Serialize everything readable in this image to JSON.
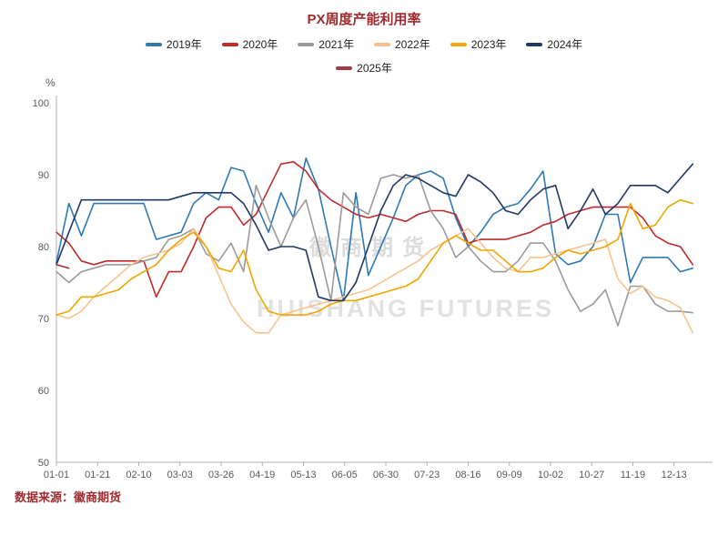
{
  "title": "PX周度产能利用率",
  "source": "数据来源：徽商期货",
  "watermark": {
    "cn": "徽商期货",
    "en": "HUISHANG FUTURES"
  },
  "y_axis": {
    "unit": "%",
    "min": 50,
    "max": 100,
    "ticks": [
      50,
      60,
      70,
      80,
      90,
      100
    ]
  },
  "x_axis": {
    "ticks": [
      "01-01",
      "01-21",
      "02-10",
      "03-03",
      "03-26",
      "04-19",
      "05-13",
      "06-05",
      "06-30",
      "07-23",
      "08-16",
      "09-09",
      "10-02",
      "10-27",
      "11-19",
      "12-13"
    ]
  },
  "chart_data": {
    "type": "line",
    "title": "PX周度产能利用率",
    "xlabel": "",
    "ylabel": "%",
    "ylim": [
      50,
      100
    ],
    "x_unit": "week-of-year (weekly points, Jan 01 to late Dec)",
    "x_tick_labels": [
      "01-01",
      "01-21",
      "02-10",
      "03-03",
      "03-26",
      "04-19",
      "05-13",
      "06-05",
      "06-30",
      "07-23",
      "08-16",
      "09-09",
      "10-02",
      "10-27",
      "11-19",
      "12-13"
    ],
    "legend_position": "top",
    "grid": false,
    "series": [
      {
        "name": "2019年",
        "color": "#2e79b5",
        "values": [
          77.8,
          86,
          81.5,
          86,
          86,
          86,
          86,
          86,
          81,
          81.5,
          82,
          86,
          87.5,
          86.5,
          91,
          90.5,
          86,
          82,
          87.5,
          84,
          92.3,
          88,
          80,
          72.5,
          87.5,
          76,
          80,
          84,
          88.5,
          90,
          90.5,
          89.5,
          84,
          80,
          82,
          84.5,
          85.5,
          86,
          88,
          90.5,
          79,
          77.5,
          78,
          80,
          84.5,
          84.5,
          75,
          78.5,
          78.5,
          78.5,
          76.5,
          77
        ]
      },
      {
        "name": "2020年",
        "color": "#c02a2a",
        "values": [
          82,
          80.5,
          78,
          77.5,
          78,
          78,
          78,
          78,
          73,
          76.5,
          76.5,
          80,
          84,
          85.5,
          85.5,
          83,
          84.5,
          88,
          91.5,
          91.8,
          90.5,
          88,
          86.5,
          85.5,
          84.5,
          84,
          84.5,
          84,
          83.5,
          84.5,
          85,
          85,
          84.5,
          80.5,
          81,
          81,
          81,
          81.5,
          82,
          83,
          83.5,
          84.5,
          85,
          85.5,
          85.5,
          85.5,
          85.5,
          84,
          81.5,
          80.5,
          80,
          77.5
        ]
      },
      {
        "name": "2021年",
        "color": "#9a9a9a",
        "values": [
          76.5,
          75,
          76.5,
          77,
          77.5,
          77.5,
          77.5,
          78,
          78.5,
          81,
          81.5,
          82.5,
          79,
          78,
          80.5,
          76.5,
          88.5,
          84,
          80,
          84,
          86.5,
          80,
          72.5,
          87.5,
          85.5,
          84.5,
          89.5,
          90,
          89.5,
          90,
          85,
          82.5,
          78.5,
          80,
          78,
          76.5,
          76.5,
          78,
          80.5,
          80.5,
          78,
          74,
          71,
          72,
          74,
          69,
          74.5,
          74.5,
          72,
          71,
          71,
          70.8
        ]
      },
      {
        "name": "2022年",
        "color": "#f7c28e",
        "values": [
          70.5,
          70,
          71,
          73,
          74.5,
          76,
          77.5,
          78.5,
          79,
          79.5,
          80.5,
          82.5,
          80,
          76,
          72,
          69.5,
          68,
          68,
          70.5,
          71,
          71.5,
          72,
          72.5,
          73,
          73.5,
          74,
          75,
          76,
          77,
          78,
          79.5,
          80.5,
          81.5,
          82.5,
          80.5,
          78.5,
          77,
          76.5,
          78.5,
          78.5,
          79,
          79.5,
          80,
          80.5,
          81,
          75.5,
          73.5,
          74.5,
          73,
          72.5,
          71.5,
          68
        ]
      },
      {
        "name": "2023年",
        "color": "#f0a500",
        "values": [
          70.5,
          71,
          73,
          73,
          73.5,
          74,
          75.5,
          76.5,
          77.5,
          79.5,
          81,
          82,
          80,
          77,
          76.5,
          79.5,
          74,
          71,
          70.5,
          70.5,
          70.5,
          71,
          72,
          72.5,
          72.5,
          73,
          73.5,
          74,
          74.5,
          75.5,
          78,
          80.5,
          81.5,
          80.5,
          79.5,
          79.5,
          78,
          76.5,
          76.5,
          77,
          78.5,
          79.5,
          79,
          79.5,
          80,
          81,
          86,
          82.5,
          83,
          85.5,
          86.5,
          86
        ]
      },
      {
        "name": "2024年",
        "color": "#1f3864",
        "values": [
          77.5,
          82,
          86.5,
          86.5,
          86.5,
          86.5,
          86.5,
          86.5,
          86.5,
          86.5,
          87,
          87.5,
          87.5,
          87.5,
          87.5,
          86,
          83,
          79.5,
          80,
          80,
          79.5,
          73,
          72.5,
          72.5,
          75,
          80,
          85,
          88.5,
          90,
          89.5,
          88.5,
          87.5,
          87,
          90,
          89,
          87.5,
          85,
          84.5,
          86.5,
          88,
          88.5,
          82.5,
          85,
          88,
          84.5,
          86,
          88.5,
          88.5,
          88.5,
          87.5,
          89.5,
          91.5
        ]
      },
      {
        "name": "2025年",
        "color": "#a23b43",
        "values": [
          77.5,
          77
        ]
      }
    ]
  }
}
